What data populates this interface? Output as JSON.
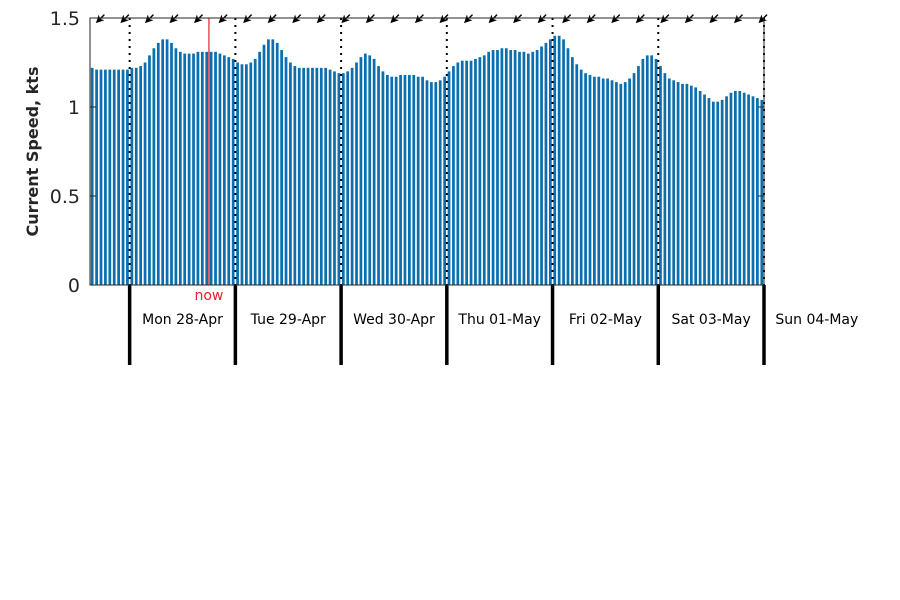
{
  "colors": {
    "bar": "#0b6fae",
    "now_marker": "#e8202a",
    "axis": "#262626",
    "day_divider": "#000000",
    "direction_arrow": "#000000"
  },
  "chart_data": {
    "type": "bar",
    "title": "",
    "xlabel": "",
    "ylabel": "Current Speed, kts",
    "ylim": [
      0,
      1.5
    ],
    "yticks": [
      {
        "value": 0,
        "label": "0"
      },
      {
        "value": 0.5,
        "label": "0.5"
      },
      {
        "value": 1,
        "label": "1"
      },
      {
        "value": 1.5,
        "label": "1.5"
      }
    ],
    "grid": false,
    "interval_hours": 1,
    "first_day_start_index": 9,
    "days": [
      "Mon 28-Apr",
      "Tue 29-Apr",
      "Wed 30-Apr",
      "Thu 01-May",
      "Fri 02-May",
      "Sat 03-May",
      "Sun 04-May"
    ],
    "now": {
      "index": 27,
      "label": "now"
    },
    "direction_arrows": {
      "count": 28,
      "symbol": "arrow pointing upper-left"
    },
    "values": [
      1.22,
      1.21,
      1.21,
      1.21,
      1.21,
      1.21,
      1.21,
      1.21,
      1.21,
      1.22,
      1.22,
      1.23,
      1.25,
      1.29,
      1.33,
      1.36,
      1.38,
      1.38,
      1.36,
      1.33,
      1.31,
      1.3,
      1.3,
      1.3,
      1.31,
      1.31,
      1.31,
      1.31,
      1.31,
      1.3,
      1.29,
      1.28,
      1.27,
      1.25,
      1.24,
      1.24,
      1.25,
      1.27,
      1.31,
      1.35,
      1.38,
      1.38,
      1.36,
      1.32,
      1.28,
      1.25,
      1.23,
      1.22,
      1.22,
      1.22,
      1.22,
      1.22,
      1.22,
      1.22,
      1.21,
      1.2,
      1.19,
      1.19,
      1.2,
      1.22,
      1.25,
      1.28,
      1.3,
      1.29,
      1.27,
      1.23,
      1.2,
      1.18,
      1.17,
      1.17,
      1.18,
      1.18,
      1.18,
      1.18,
      1.17,
      1.17,
      1.15,
      1.14,
      1.14,
      1.15,
      1.17,
      1.2,
      1.23,
      1.25,
      1.26,
      1.26,
      1.26,
      1.27,
      1.28,
      1.29,
      1.31,
      1.32,
      1.32,
      1.33,
      1.33,
      1.32,
      1.32,
      1.31,
      1.31,
      1.3,
      1.31,
      1.32,
      1.34,
      1.36,
      1.38,
      1.4,
      1.4,
      1.38,
      1.33,
      1.28,
      1.24,
      1.21,
      1.19,
      1.18,
      1.17,
      1.17,
      1.16,
      1.16,
      1.15,
      1.14,
      1.13,
      1.14,
      1.16,
      1.19,
      1.23,
      1.27,
      1.29,
      1.29,
      1.27,
      1.23,
      1.19,
      1.16,
      1.15,
      1.14,
      1.13,
      1.13,
      1.12,
      1.11,
      1.09,
      1.07,
      1.05,
      1.03,
      1.03,
      1.04,
      1.06,
      1.08,
      1.09,
      1.09,
      1.08,
      1.07,
      1.06,
      1.05,
      1.04
    ]
  }
}
